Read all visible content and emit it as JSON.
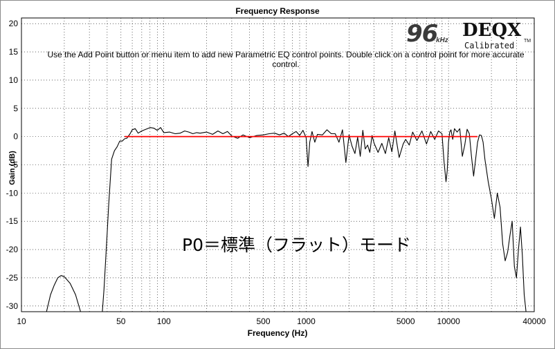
{
  "chart_data": {
    "type": "line",
    "title": "Frequency Response",
    "xlabel": "Frequency (Hz)",
    "ylabel": "Gain (dB)",
    "xscale": "log",
    "xlim": [
      10,
      40000
    ],
    "ylim": [
      -31,
      21
    ],
    "x_ticks": [
      10,
      50,
      100,
      500,
      1000,
      5000,
      10000,
      40000
    ],
    "x_tick_labels": [
      "10",
      "50",
      "100",
      "500",
      "1000",
      "5000",
      "10000",
      "40000"
    ],
    "y_ticks": [
      20,
      15,
      10,
      5,
      0,
      -5,
      -10,
      -15,
      -20,
      -25,
      -30
    ],
    "y_tick_labels": [
      "20",
      "15",
      "10",
      "5",
      "0",
      "-5",
      "-10",
      "-15",
      "-20",
      "-25",
      "-30"
    ],
    "grid": "dotted",
    "colors": {
      "measured": "#000000",
      "target": "#ff0000",
      "grid": "#000000"
    },
    "series": [
      {
        "key": "measured",
        "x": [
          15,
          16,
          17,
          18,
          19,
          20,
          22,
          24,
          26,
          30,
          35,
          37,
          38,
          39,
          40,
          41,
          42,
          43,
          45,
          47,
          49,
          51,
          53,
          55,
          58,
          60,
          63,
          66,
          70,
          75,
          80,
          85,
          90,
          95,
          100,
          110,
          120,
          130,
          140,
          150,
          160,
          170,
          180,
          200,
          220,
          240,
          260,
          280,
          300,
          330,
          360,
          400,
          450,
          500,
          550,
          600,
          650,
          700,
          750,
          800,
          850,
          900,
          950,
          1000,
          1030,
          1060,
          1100,
          1150,
          1200,
          1300,
          1400,
          1500,
          1600,
          1700,
          1800,
          1900,
          2000,
          2100,
          2200,
          2300,
          2400,
          2500,
          2600,
          2700,
          2800,
          2900,
          3000,
          3200,
          3400,
          3600,
          3800,
          4000,
          4200,
          4500,
          4800,
          5000,
          5300,
          5600,
          6000,
          6500,
          7000,
          7500,
          8000,
          8500,
          9000,
          9300,
          9600,
          9800,
          10000,
          10200,
          10400,
          10700,
          11000,
          11500,
          12000,
          12500,
          13000,
          13500,
          14000,
          14500,
          15000,
          15500,
          16000,
          16500,
          17000,
          17500,
          18000,
          19000,
          20000,
          21000,
          22000,
          23000,
          24000,
          25000,
          26000,
          27000,
          28000,
          29000,
          30000,
          31000,
          32000,
          33000,
          34000,
          35000
        ],
        "y": [
          -31,
          -28,
          -26.3,
          -25,
          -24.6,
          -24.8,
          -26,
          -28,
          -31,
          -31,
          -31,
          -31,
          -27,
          -22,
          -17,
          -12,
          -8,
          -4,
          -2.5,
          -1.8,
          -0.8,
          -0.8,
          -0.4,
          -0.3,
          0.5,
          1.2,
          1.4,
          0.6,
          1.0,
          1.3,
          1.6,
          1.5,
          1.1,
          1.6,
          0.7,
          0.8,
          0.5,
          0.6,
          1.0,
          0.8,
          0.5,
          0.7,
          0.6,
          0.8,
          0.4,
          1.0,
          0.5,
          0.9,
          0.1,
          -0.3,
          0.3,
          -0.2,
          0.2,
          0.3,
          0.5,
          0.6,
          0.3,
          0.6,
          0.0,
          0.5,
          0.9,
          0.2,
          1.1,
          -0.2,
          -5.3,
          -1.0,
          0.9,
          -1.0,
          0.4,
          0.3,
          1.2,
          0.5,
          0.5,
          -1.0,
          1.2,
          -4.6,
          0.3,
          -1.7,
          -3.0,
          -0.1,
          -3.5,
          1.1,
          -2.2,
          -1.5,
          -2.8,
          0.2,
          -1.2,
          -2.8,
          -1.2,
          -3.0,
          -0.2,
          -2.7,
          1.0,
          -3.7,
          -1.3,
          -0.5,
          -1.5,
          0.8,
          -0.7,
          1.0,
          -1.3,
          0.9,
          -0.5,
          1.0,
          0.5,
          -4.5,
          -8.0,
          -6.0,
          -1.0,
          0.8,
          1.2,
          -0.5,
          1.4,
          0.8,
          1.4,
          -3.5,
          -1.5,
          1.3,
          0.5,
          -3.5,
          -7.0,
          -4.0,
          -1.0,
          0.3,
          0.2,
          -1.0,
          -4.0,
          -8.0,
          -11.0,
          -14.5,
          -10.0,
          -12.5,
          -19.0,
          -22.0,
          -20.5,
          -17.5,
          -15.0,
          -23.0,
          -25.0,
          -20.0,
          -16.0,
          -21.0,
          -28.0,
          -31.0
        ]
      },
      {
        "key": "target",
        "x": [
          53,
          16000
        ],
        "y": [
          0,
          0
        ]
      }
    ]
  },
  "instruction_text": "Use the Add Point button or menu item to add new Parametric EQ control points.  Double click on a control point for more accurate control.",
  "overlay_caption": "P0＝標準（フラット）モード",
  "logo": {
    "rate": "96",
    "unit": "kHz",
    "brand": "DEQX",
    "subtitle": "Calibrated",
    "trademark": "TM"
  }
}
